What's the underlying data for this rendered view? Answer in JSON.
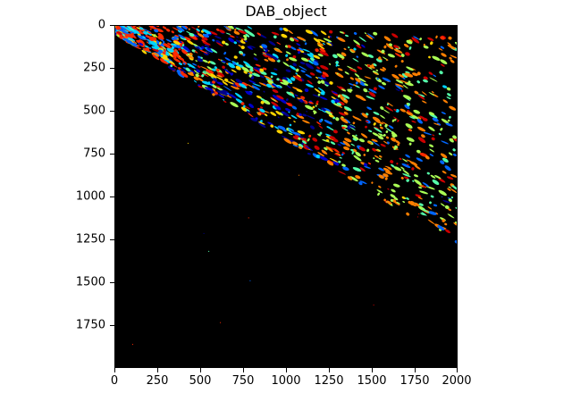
{
  "title": "DAB_object",
  "image": {
    "description_colors": [
      "#ff2a00",
      "#ff7f00",
      "#ffd400",
      "#aaff55",
      "#55ffaa",
      "#00d4ff",
      "#0066ff",
      "#0000cc",
      "#00008b",
      "#cc0000"
    ],
    "background": "#000000"
  },
  "x_ticks": [
    "0",
    "250",
    "500",
    "750",
    "1000",
    "1250",
    "1500",
    "1750",
    "2000"
  ],
  "y_ticks": [
    "0",
    "250",
    "500",
    "750",
    "1000",
    "1250",
    "1500",
    "1750"
  ]
}
